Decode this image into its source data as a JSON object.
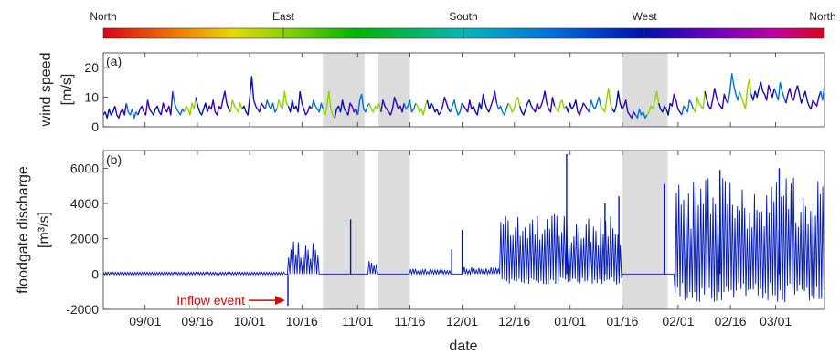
{
  "chart_data": [
    {
      "type": "colorbar",
      "labels": [
        "North",
        "East",
        "South",
        "West",
        "North"
      ]
    },
    {
      "type": "line",
      "panel_label": "(a)",
      "ylabel": [
        "wind speed",
        "[m/s]"
      ],
      "ylim": [
        0,
        25
      ],
      "yticks": [
        0,
        10,
        20
      ],
      "xtick_labels": [
        "09/01",
        "09/16",
        "10/01",
        "10/16",
        "11/01",
        "11/16",
        "12/01",
        "12/16",
        "01/01",
        "01/16",
        "02/01",
        "02/16",
        "03/01"
      ],
      "x_start": "08/20",
      "x_end": "03/15",
      "shaded_periods": [
        [
          "10/22",
          "11/03"
        ],
        [
          "11/07",
          "11/16"
        ],
        [
          "01/16",
          "01/29"
        ]
      ],
      "color_encoding": "wind direction",
      "series": [
        {
          "values": [
            4,
            5,
            3,
            6,
            4,
            5,
            7,
            4,
            3,
            5,
            6,
            4,
            8,
            5,
            4,
            6,
            3,
            5,
            4,
            6,
            7,
            5,
            4,
            9,
            6,
            5,
            4,
            6,
            7,
            5,
            4,
            8,
            6,
            5,
            7,
            4,
            12,
            8,
            6,
            5,
            4,
            6,
            5,
            7,
            6,
            4,
            8,
            6,
            10,
            7,
            5,
            4,
            6,
            8,
            5,
            7,
            6,
            9,
            5,
            4,
            7,
            6,
            9,
            12,
            8,
            6,
            5,
            9,
            7,
            6,
            5,
            8,
            6,
            7,
            5,
            4,
            10,
            17,
            9,
            7,
            6,
            5,
            8,
            7,
            6,
            9,
            7,
            6,
            8,
            5,
            6,
            9,
            7,
            6,
            12,
            8,
            7,
            5,
            9,
            6,
            7,
            5,
            12,
            8,
            6,
            4,
            5,
            7,
            6,
            9,
            7,
            6,
            5,
            8,
            6,
            4,
            7,
            12,
            6,
            4,
            3,
            6,
            7,
            5,
            9,
            6,
            5,
            4,
            8,
            7,
            5,
            6,
            4,
            9,
            11,
            6,
            5,
            7,
            8,
            6,
            5,
            7,
            6,
            8,
            5,
            9,
            7,
            6,
            5,
            4,
            6,
            10,
            8,
            6,
            7,
            5,
            8,
            6,
            7,
            9,
            5,
            6,
            8,
            7,
            5,
            6,
            4,
            7,
            9,
            6,
            8,
            7,
            5,
            6,
            4,
            5,
            7,
            10,
            8,
            6,
            5,
            7,
            9,
            6,
            4,
            5,
            8,
            7,
            6,
            5,
            9,
            6,
            7,
            5,
            4,
            8,
            6,
            11,
            8,
            6,
            5,
            7,
            9,
            12,
            8,
            6,
            7,
            5,
            4,
            6,
            8,
            7,
            5,
            6,
            9,
            10,
            7,
            5,
            4,
            6,
            8,
            9,
            7,
            6,
            5,
            8,
            6,
            7,
            9,
            12,
            8,
            6,
            5,
            10,
            7,
            6,
            5,
            8,
            9,
            6,
            7,
            5,
            8,
            6,
            7,
            9,
            5,
            4,
            6,
            8,
            7,
            6,
            5,
            9,
            7,
            6,
            8,
            10,
            7,
            6,
            5,
            9,
            13,
            8,
            6,
            5,
            7,
            12,
            8,
            6,
            7,
            9,
            5,
            4,
            3,
            5,
            4,
            3,
            6,
            4,
            5,
            3,
            4,
            5,
            7,
            6,
            9,
            12,
            8,
            6,
            5,
            7,
            6,
            4,
            8,
            7,
            11,
            9,
            6,
            5,
            4,
            7,
            6,
            5,
            9,
            8,
            6,
            5,
            10,
            8,
            7,
            6,
            12,
            9,
            7,
            6,
            9,
            13,
            10,
            8,
            7,
            6,
            11,
            9,
            8,
            12,
            18,
            14,
            11,
            9,
            12,
            10,
            8,
            6,
            13,
            16,
            11,
            9,
            12,
            10,
            13,
            15,
            12,
            11,
            9,
            14,
            12,
            10,
            13,
            11,
            9,
            15,
            12,
            10,
            8,
            11,
            13,
            10,
            9,
            12,
            14,
            11,
            8,
            10,
            12,
            9,
            7,
            6,
            9,
            8,
            7,
            10,
            12,
            9,
            14
          ]
        }
      ]
    },
    {
      "type": "line",
      "panel_label": "(b)",
      "ylabel": [
        "floodgate discharge",
        "[m³/s]"
      ],
      "ylim": [
        -2000,
        7000
      ],
      "yticks": [
        -2000,
        0,
        2000,
        4000,
        6000
      ],
      "xlabel": "date",
      "xtick_labels": [
        "09/01",
        "09/16",
        "10/01",
        "10/16",
        "11/01",
        "11/16",
        "12/01",
        "12/16",
        "01/01",
        "01/16",
        "02/01",
        "02/16",
        "03/01"
      ],
      "x_start": "08/20",
      "x_end": "03/15",
      "shaded_periods": [
        [
          "10/22",
          "11/03"
        ],
        [
          "11/07",
          "11/16"
        ],
        [
          "01/16",
          "01/29"
        ]
      ],
      "annotation": {
        "text": "Inflow event",
        "date": "10/12",
        "value": -1800
      },
      "features": [
        {
          "kind": "baseline",
          "from": "08/20",
          "to": "10/11",
          "value": 100,
          "note": "small oscillation around zero"
        },
        {
          "kind": "inflow_spike",
          "date": "10/12",
          "value": -1800
        },
        {
          "kind": "oscillation",
          "from": "10/12",
          "to": "10/21",
          "max": 1900
        },
        {
          "kind": "spike",
          "date": "10/30",
          "value": 3100
        },
        {
          "kind": "oscillation",
          "from": "11/04",
          "to": "11/07",
          "max": 800
        },
        {
          "kind": "oscillation",
          "from": "11/16",
          "to": "11/28",
          "max": 300
        },
        {
          "kind": "spike",
          "date": "11/28",
          "value": 1400
        },
        {
          "kind": "spike",
          "date": "12/01",
          "value": 2500
        },
        {
          "kind": "oscillation",
          "from": "12/01",
          "to": "12/12",
          "max": 400
        },
        {
          "kind": "oscillation",
          "from": "12/12",
          "to": "01/16",
          "max": 3500,
          "min": -600
        },
        {
          "kind": "spike",
          "date": "12/31",
          "value": 6800
        },
        {
          "kind": "spike",
          "date": "01/11",
          "value": 4000
        },
        {
          "kind": "spike",
          "date": "01/15",
          "value": 4400
        },
        {
          "kind": "zero",
          "from": "01/16",
          "to": "01/28",
          "value": 0
        },
        {
          "kind": "spike",
          "date": "01/28",
          "value": 5100
        },
        {
          "kind": "oscillation",
          "from": "01/31",
          "to": "03/15",
          "max": 5500,
          "min": -1600
        },
        {
          "kind": "spike",
          "date": "02/13",
          "value": 5900
        },
        {
          "kind": "spike",
          "date": "03/02",
          "value": 6000
        }
      ]
    }
  ]
}
